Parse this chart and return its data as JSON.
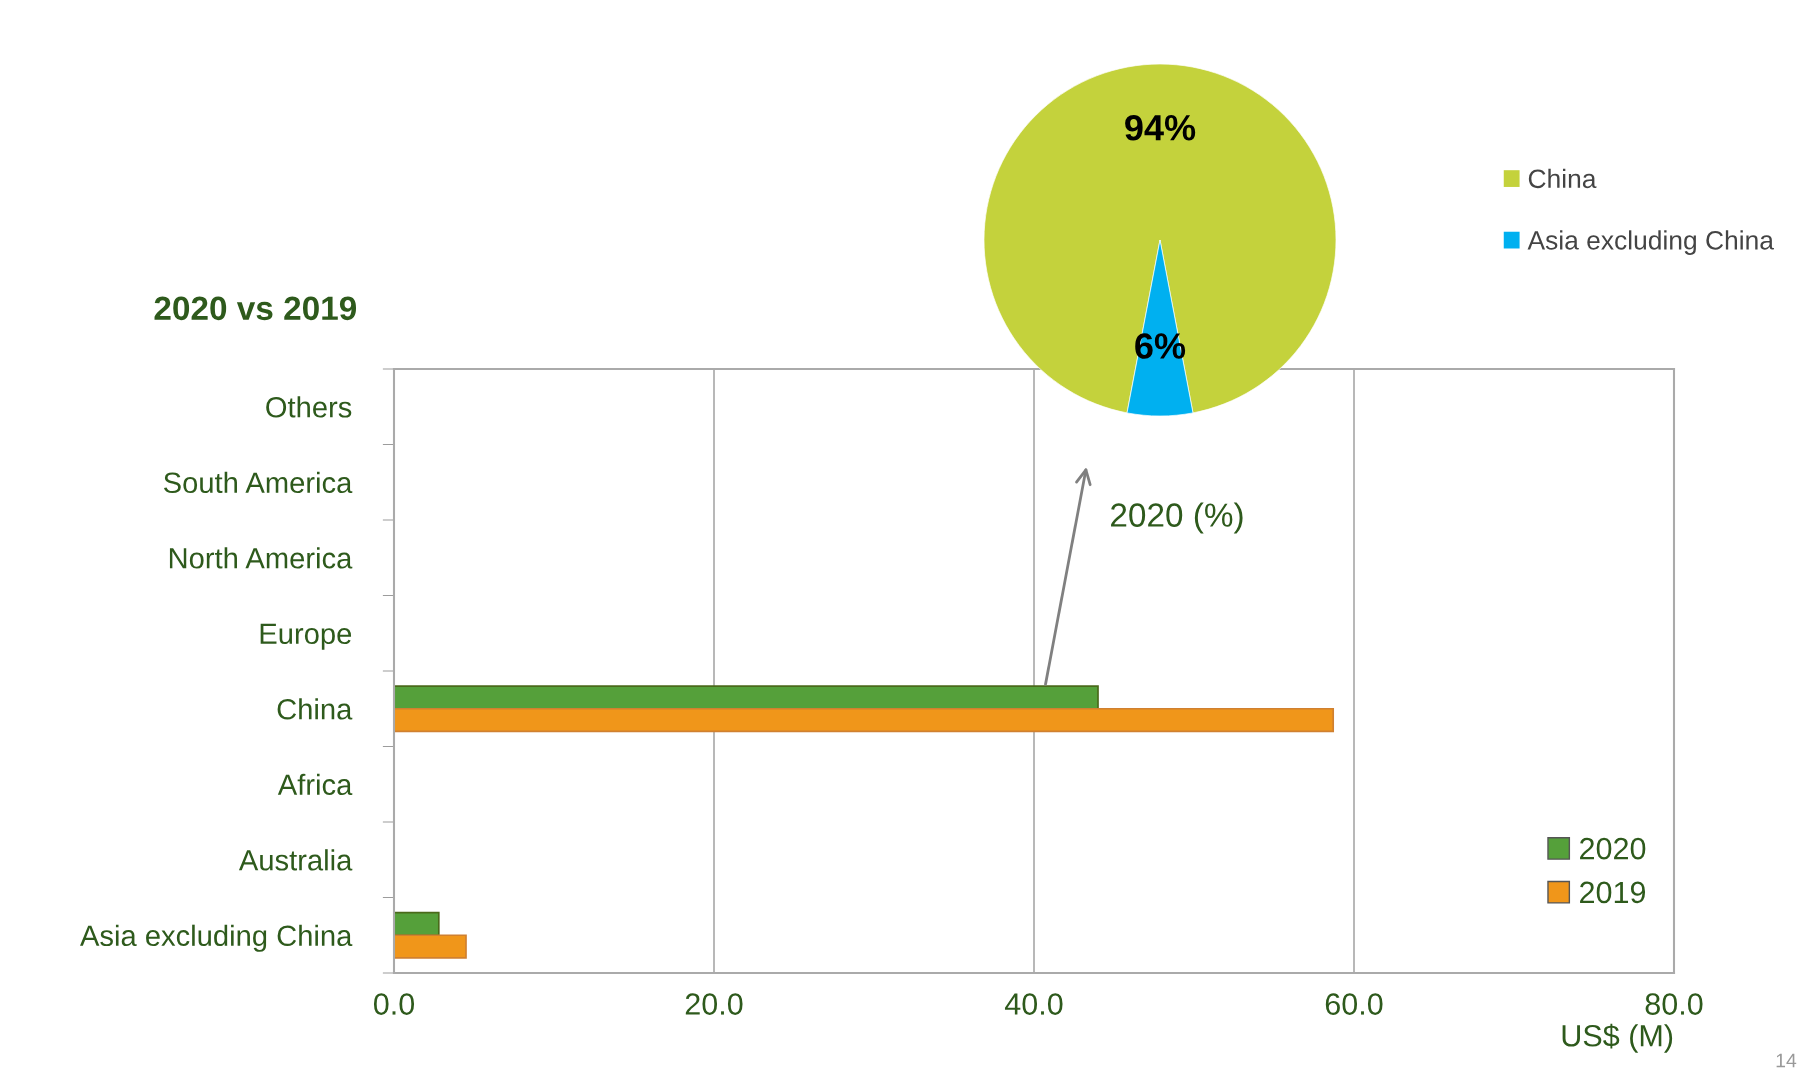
{
  "chart_data": [
    {
      "type": "bar",
      "orientation": "horizontal",
      "title": "2020 vs 2019",
      "xlabel": "US$ (M)",
      "categories": [
        "Others",
        "South America",
        "North America",
        "Europe",
        "China",
        "Africa",
        "Australia",
        "Asia excluding China"
      ],
      "series": [
        {
          "name": "2020",
          "color": "#55a03a",
          "values": [
            null,
            null,
            null,
            null,
            44.0,
            null,
            null,
            2.8
          ]
        },
        {
          "name": "2019",
          "color": "#f0961a",
          "values": [
            null,
            null,
            null,
            null,
            58.7,
            null,
            null,
            4.5
          ]
        }
      ],
      "xlim": [
        0,
        80
      ],
      "xticks": [
        {
          "value": 0,
          "label": "0.0"
        },
        {
          "value": 20,
          "label": "20.0"
        },
        {
          "value": 40,
          "label": "40.0"
        },
        {
          "value": 60,
          "label": "60.0"
        },
        {
          "value": 80,
          "label": "80.0"
        }
      ],
      "grid": "x",
      "legend": "bottom right",
      "annotations": [
        "14"
      ]
    },
    {
      "type": "pie",
      "title": "2020 (%)",
      "categories": [
        "China",
        "Asia excluding China"
      ],
      "values": [
        94,
        6
      ],
      "colors": [
        "#c4d23c",
        "#00b0f0"
      ],
      "value_labels": [
        "94%",
        "6%"
      ],
      "legend": "right"
    }
  ]
}
